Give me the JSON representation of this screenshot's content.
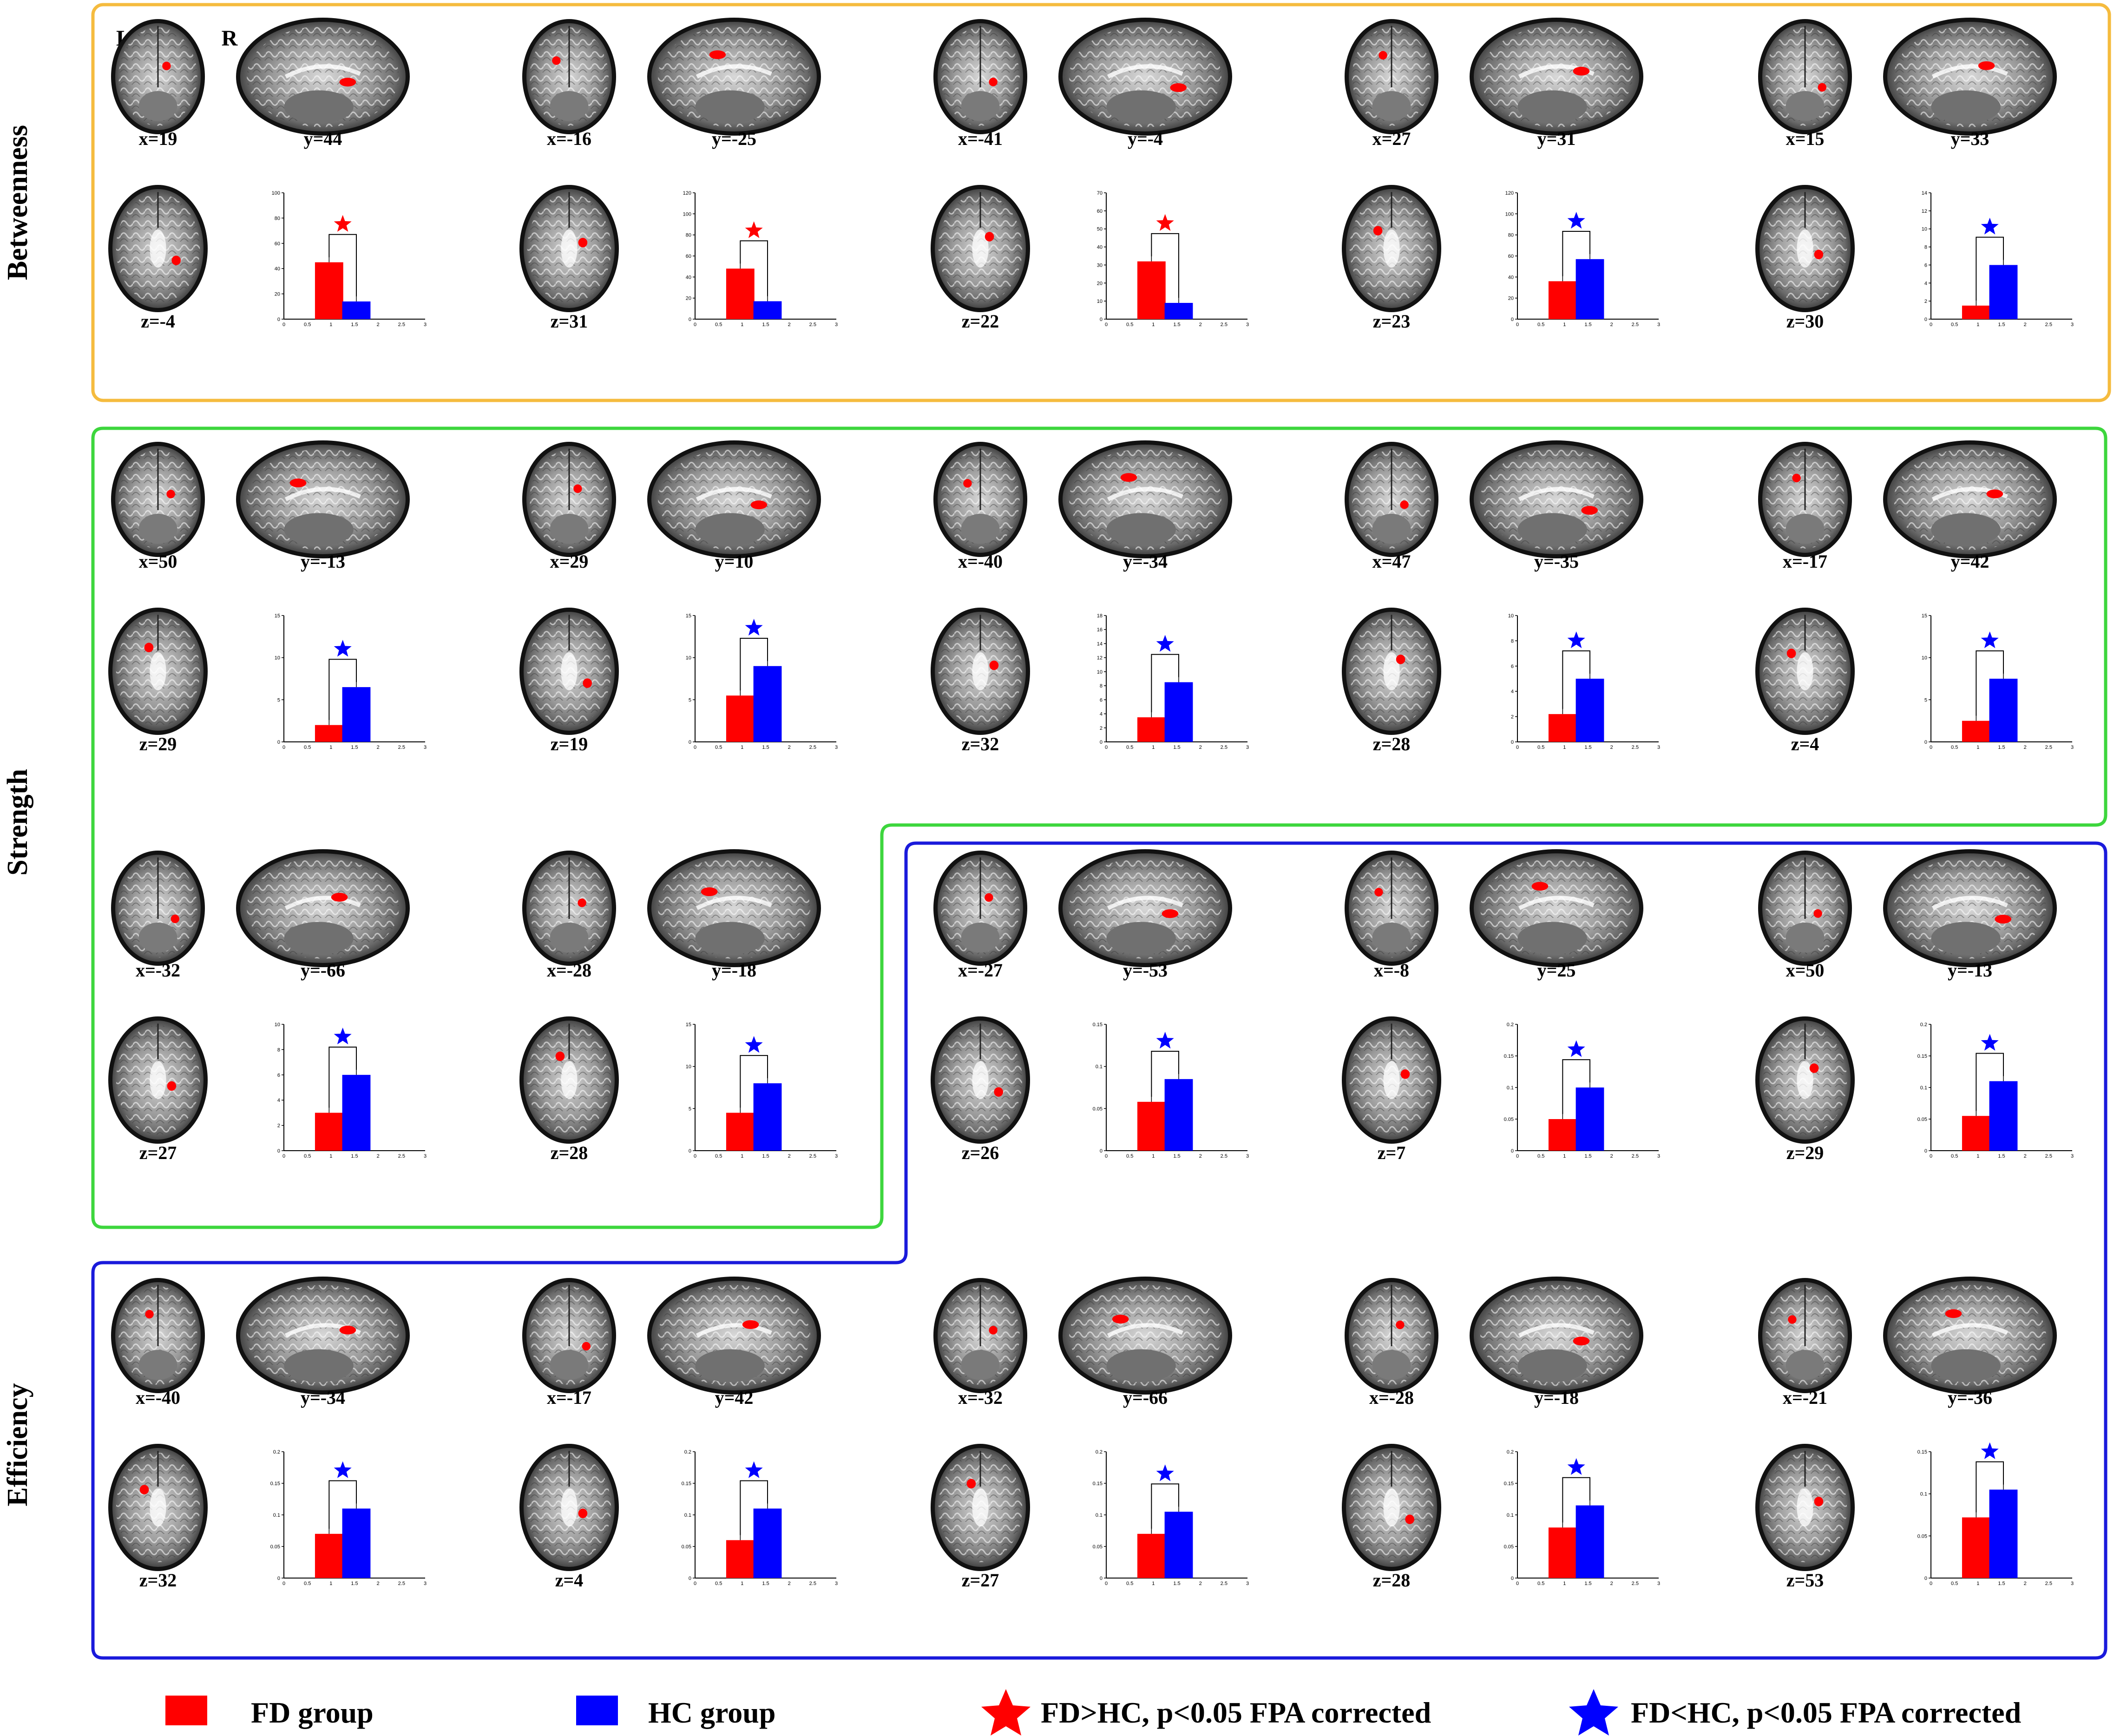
{
  "orientation": {
    "left": "L",
    "right": "R"
  },
  "sections": [
    {
      "title": "Betweenness",
      "color": "#f5bb3e"
    },
    {
      "title": "Strength",
      "color": "#3dd63d"
    },
    {
      "title": "Efficiency",
      "color": "#1a1adb"
    }
  ],
  "colors": {
    "fd": "#ff0000",
    "hc": "#0000ff",
    "frame_between": "#f5bb3e",
    "frame_strength": "#3dd63d",
    "frame_efficiency": "#1a1adb"
  },
  "panels": [
    {
      "section": "Betweenness",
      "coronal": "x=19",
      "sagittal": "y=44",
      "axial": "z=-4",
      "sig": "FD>HC",
      "chart_data": {
        "type": "bar",
        "categories": [
          "FD group",
          "HC group"
        ],
        "values": [
          45,
          14
        ],
        "ylim": [
          0,
          100
        ],
        "yticks": [
          "0",
          "20",
          "40",
          "60",
          "80",
          "100"
        ],
        "xticks": [
          "0",
          "0.5",
          "1",
          "1.5",
          "2",
          "2.5",
          "3"
        ]
      }
    },
    {
      "section": "Betweenness",
      "coronal": "x=-16",
      "sagittal": "y=-25",
      "axial": "z=31",
      "sig": "FD>HC",
      "chart_data": {
        "type": "bar",
        "categories": [
          "FD group",
          "HC group"
        ],
        "values": [
          48,
          17
        ],
        "ylim": [
          0,
          120
        ],
        "yticks": [
          "0",
          "20",
          "40",
          "60",
          "80",
          "100",
          "120"
        ],
        "xticks": [
          "0",
          "0.5",
          "1",
          "1.5",
          "2",
          "2.5",
          "3"
        ]
      }
    },
    {
      "section": "Betweenness",
      "coronal": "x=-41",
      "sagittal": "y=-4",
      "axial": "z=22",
      "sig": "FD>HC",
      "chart_data": {
        "type": "bar",
        "categories": [
          "FD group",
          "HC group"
        ],
        "values": [
          32,
          9
        ],
        "ylim": [
          0,
          70
        ],
        "yticks": [
          "0",
          "10",
          "20",
          "30",
          "40",
          "50",
          "60",
          "70"
        ],
        "xticks": [
          "0",
          "0.5",
          "1",
          "1.5",
          "2",
          "2.5",
          "3"
        ]
      }
    },
    {
      "section": "Betweenness",
      "coronal": "x=27",
      "sagittal": "y=31",
      "axial": "z=23",
      "sig": "FD<HC",
      "chart_data": {
        "type": "bar",
        "categories": [
          "FD group",
          "HC group"
        ],
        "values": [
          36,
          57
        ],
        "ylim": [
          0,
          120
        ],
        "yticks": [
          "0",
          "20",
          "40",
          "60",
          "80",
          "100",
          "120"
        ],
        "xticks": [
          "0",
          "0.5",
          "1",
          "1.5",
          "2",
          "2.5",
          "3"
        ]
      }
    },
    {
      "section": "Betweenness",
      "coronal": "x=15",
      "sagittal": "y=33",
      "axial": "z=30",
      "sig": "FD<HC",
      "chart_data": {
        "type": "bar",
        "categories": [
          "FD group",
          "HC group"
        ],
        "values": [
          1.5,
          6
        ],
        "ylim": [
          0,
          14
        ],
        "yticks": [
          "0",
          "2",
          "4",
          "6",
          "8",
          "10",
          "12",
          "14"
        ],
        "xticks": [
          "0",
          "0.5",
          "1",
          "1.5",
          "2",
          "2.5",
          "3"
        ]
      }
    },
    {
      "section": "Strength",
      "coronal": "x=50",
      "sagittal": "y=-13",
      "axial": "z=29",
      "sig": "FD<HC",
      "chart_data": {
        "type": "bar",
        "categories": [
          "FD group",
          "HC group"
        ],
        "values": [
          2,
          6.5
        ],
        "ylim": [
          0,
          15
        ],
        "yticks": [
          "0",
          "5",
          "10",
          "15"
        ],
        "xticks": [
          "0",
          "0.5",
          "1",
          "1.5",
          "2",
          "2.5",
          "3"
        ]
      }
    },
    {
      "section": "Strength",
      "coronal": "x=29",
      "sagittal": "y=10",
      "axial": "z=19",
      "sig": "FD<HC",
      "chart_data": {
        "type": "bar",
        "categories": [
          "FD group",
          "HC group"
        ],
        "values": [
          5.5,
          9
        ],
        "ylim": [
          0,
          15
        ],
        "yticks": [
          "0",
          "5",
          "10",
          "15"
        ],
        "xticks": [
          "0",
          "0.5",
          "1",
          "1.5",
          "2",
          "2.5",
          "3"
        ]
      }
    },
    {
      "section": "Strength",
      "coronal": "x=-40",
      "sagittal": "y=-34",
      "axial": "z=32",
      "sig": "FD<HC",
      "chart_data": {
        "type": "bar",
        "categories": [
          "FD group",
          "HC group"
        ],
        "values": [
          3.5,
          8.5
        ],
        "ylim": [
          0,
          18
        ],
        "yticks": [
          "0",
          "2",
          "4",
          "6",
          "8",
          "10",
          "12",
          "14",
          "16",
          "18"
        ],
        "xticks": [
          "0",
          "0.5",
          "1",
          "1.5",
          "2",
          "2.5",
          "3"
        ]
      }
    },
    {
      "section": "Strength",
      "coronal": "x=47",
      "sagittal": "y=-35",
      "axial": "z=28",
      "sig": "FD<HC",
      "chart_data": {
        "type": "bar",
        "categories": [
          "FD group",
          "HC group"
        ],
        "values": [
          2.2,
          5
        ],
        "ylim": [
          0,
          10
        ],
        "yticks": [
          "0",
          "2",
          "4",
          "6",
          "8",
          "10"
        ],
        "xticks": [
          "0",
          "0.5",
          "1",
          "1.5",
          "2",
          "2.5",
          "3"
        ]
      }
    },
    {
      "section": "Strength",
      "coronal": "x=-17",
      "sagittal": "y=42",
      "axial": "z=4",
      "sig": "FD<HC",
      "chart_data": {
        "type": "bar",
        "categories": [
          "FD group",
          "HC group"
        ],
        "values": [
          2.5,
          7.5
        ],
        "ylim": [
          0,
          15
        ],
        "yticks": [
          "0",
          "5",
          "10",
          "15"
        ],
        "xticks": [
          "0",
          "0.5",
          "1",
          "1.5",
          "2",
          "2.5",
          "3"
        ]
      }
    },
    {
      "section": "Strength",
      "coronal": "x=-32",
      "sagittal": "y=-66",
      "axial": "z=27",
      "sig": "FD<HC",
      "chart_data": {
        "type": "bar",
        "categories": [
          "FD group",
          "HC group"
        ],
        "values": [
          3,
          6
        ],
        "ylim": [
          0,
          10
        ],
        "yticks": [
          "0",
          "2",
          "4",
          "6",
          "8",
          "10"
        ],
        "xticks": [
          "0",
          "0.5",
          "1",
          "1.5",
          "2",
          "2.5",
          "3"
        ]
      }
    },
    {
      "section": "Strength",
      "coronal": "x=-28",
      "sagittal": "y=-18",
      "axial": "z=28",
      "sig": "FD<HC",
      "chart_data": {
        "type": "bar",
        "categories": [
          "FD group",
          "HC group"
        ],
        "values": [
          4.5,
          8
        ],
        "ylim": [
          0,
          15
        ],
        "yticks": [
          "0",
          "5",
          "10",
          "15"
        ],
        "xticks": [
          "0",
          "0.5",
          "1",
          "1.5",
          "2",
          "2.5",
          "3"
        ]
      }
    },
    {
      "section": "Efficiency",
      "coronal": "x=-27",
      "sagittal": "y=-53",
      "axial": "z=26",
      "sig": "FD<HC",
      "chart_data": {
        "type": "bar",
        "categories": [
          "FD group",
          "HC group"
        ],
        "values": [
          0.058,
          0.085
        ],
        "ylim": [
          0,
          0.15
        ],
        "yticks": [
          "0",
          "0.05",
          "0.1",
          "0.15"
        ],
        "xticks": [
          "0",
          "0.5",
          "1",
          "1.5",
          "2",
          "2.5",
          "3"
        ]
      }
    },
    {
      "section": "Efficiency",
      "coronal": "x=-8",
      "sagittal": "y=25",
      "axial": "z=7",
      "sig": "FD<HC",
      "chart_data": {
        "type": "bar",
        "categories": [
          "FD group",
          "HC group"
        ],
        "values": [
          0.05,
          0.1
        ],
        "ylim": [
          0,
          0.2
        ],
        "yticks": [
          "0",
          "0.05",
          "0.1",
          "0.15",
          "0.2"
        ],
        "xticks": [
          "0",
          "0.5",
          "1",
          "1.5",
          "2",
          "2.5",
          "3"
        ]
      }
    },
    {
      "section": "Efficiency",
      "coronal": "x=50",
      "sagittal": "y=-13",
      "axial": "z=29",
      "sig": "FD<HC",
      "chart_data": {
        "type": "bar",
        "categories": [
          "FD group",
          "HC group"
        ],
        "values": [
          0.055,
          0.11
        ],
        "ylim": [
          0,
          0.2
        ],
        "yticks": [
          "0",
          "0.05",
          "0.1",
          "0.15",
          "0.2"
        ],
        "xticks": [
          "0",
          "0.5",
          "1",
          "1.5",
          "2",
          "2.5",
          "3"
        ]
      }
    },
    {
      "section": "Efficiency",
      "coronal": "x=-40",
      "sagittal": "y=-34",
      "axial": "z=32",
      "sig": "FD<HC",
      "chart_data": {
        "type": "bar",
        "categories": [
          "FD group",
          "HC group"
        ],
        "values": [
          0.07,
          0.11
        ],
        "ylim": [
          0,
          0.2
        ],
        "yticks": [
          "0",
          "0.05",
          "0.1",
          "0.15",
          "0.2"
        ],
        "xticks": [
          "0",
          "0.5",
          "1",
          "1.5",
          "2",
          "2.5",
          "3"
        ]
      }
    },
    {
      "section": "Efficiency",
      "coronal": "x=-17",
      "sagittal": "y=42",
      "axial": "z=4",
      "sig": "FD<HC",
      "chart_data": {
        "type": "bar",
        "categories": [
          "FD group",
          "HC group"
        ],
        "values": [
          0.06,
          0.11
        ],
        "ylim": [
          0,
          0.2
        ],
        "yticks": [
          "0",
          "0.05",
          "0.1",
          "0.15",
          "0.2"
        ],
        "xticks": [
          "0",
          "0.5",
          "1",
          "1.5",
          "2",
          "2.5",
          "3"
        ]
      }
    },
    {
      "section": "Efficiency",
      "coronal": "x=-32",
      "sagittal": "y=-66",
      "axial": "z=27",
      "sig": "FD<HC",
      "chart_data": {
        "type": "bar",
        "categories": [
          "FD group",
          "HC group"
        ],
        "values": [
          0.07,
          0.105
        ],
        "ylim": [
          0,
          0.2
        ],
        "yticks": [
          "0",
          "0.05",
          "0.1",
          "0.15",
          "0.2"
        ],
        "xticks": [
          "0",
          "0.5",
          "1",
          "1.5",
          "2",
          "2.5",
          "3"
        ]
      }
    },
    {
      "section": "Efficiency",
      "coronal": "x=-28",
      "sagittal": "y=-18",
      "axial": "z=28",
      "sig": "FD<HC",
      "chart_data": {
        "type": "bar",
        "categories": [
          "FD group",
          "HC group"
        ],
        "values": [
          0.08,
          0.115
        ],
        "ylim": [
          0,
          0.2
        ],
        "yticks": [
          "0",
          "0.05",
          "0.1",
          "0.15",
          "0.2"
        ],
        "xticks": [
          "0",
          "0.5",
          "1",
          "1.5",
          "2",
          "2.5",
          "3"
        ]
      }
    },
    {
      "section": "Efficiency",
      "coronal": "x=-21",
      "sagittal": "y=-36",
      "axial": "z=53",
      "sig": "FD<HC",
      "chart_data": {
        "type": "bar",
        "categories": [
          "FD group",
          "HC group"
        ],
        "values": [
          0.072,
          0.105
        ],
        "ylim": [
          0,
          0.15
        ],
        "yticks": [
          "0",
          "0.05",
          "0.1",
          "0.15"
        ],
        "xticks": [
          "0",
          "0.5",
          "1",
          "1.5",
          "2",
          "2.5",
          "3"
        ]
      }
    }
  ],
  "legend": {
    "fd_label": "FD group",
    "hc_label": "HC group",
    "fd_gt_label": "FD>HC, p<0.05 FPA corrected",
    "fd_lt_label": "FD<HC, p<0.05 FPA corrected"
  }
}
